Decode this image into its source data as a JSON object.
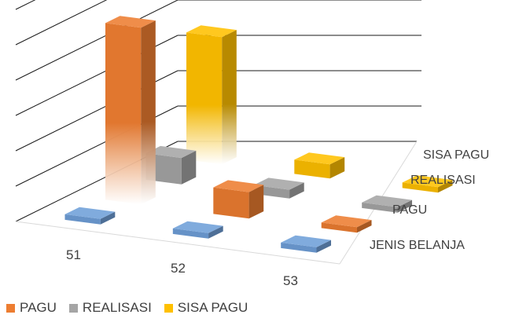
{
  "chart_data": {
    "type": "bar",
    "variant": "3d-column",
    "categories": [
      "51",
      "52",
      "53"
    ],
    "depth_labels": [
      "JENIS BELANJA",
      "PAGU",
      "REALISASI",
      "SISA PAGU"
    ],
    "series": [
      {
        "name": "JENIS BELANJA",
        "values": [
          0,
          0,
          0
        ],
        "color": "#6f9fd8"
      },
      {
        "name": "PAGU",
        "values": [
          100,
          15,
          0.5
        ],
        "color": "#ed7d31"
      },
      {
        "name": "REALISASI",
        "values": [
          15,
          5,
          0.5
        ],
        "color": "#a5a5a5"
      },
      {
        "name": "SISA PAGU",
        "values": [
          72,
          8,
          0.5
        ],
        "color": "#ffc000"
      }
    ],
    "legend": [
      {
        "label": "PAGU",
        "color": "#ed7d31"
      },
      {
        "label": "REALISASI",
        "color": "#a5a5a5"
      },
      {
        "label": "SISA PAGU",
        "color": "#ffc000"
      }
    ],
    "legend_position": "bottom-left",
    "ylim": [
      0,
      120
    ],
    "grid": true
  }
}
